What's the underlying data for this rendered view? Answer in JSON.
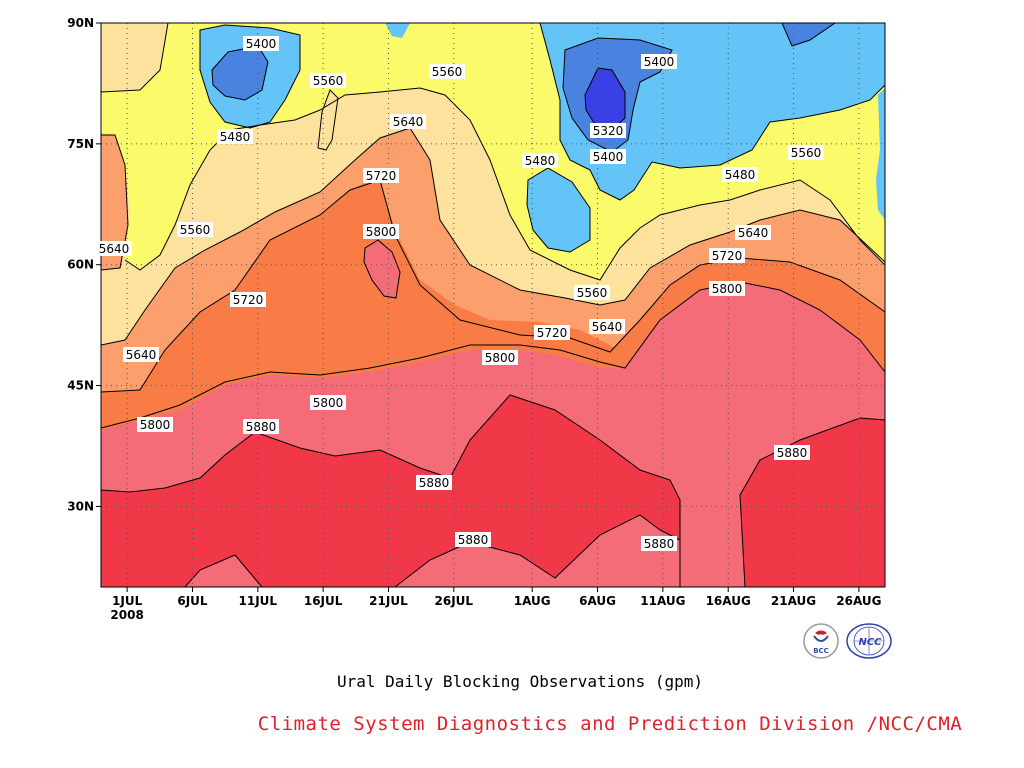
{
  "chart_data": {
    "type": "contour",
    "xlabel": "",
    "ylabel": "",
    "x_ticks": [
      "1JUL",
      "6JUL",
      "11JUL",
      "16JUL",
      "21JUL",
      "26JUL",
      "1AUG",
      "6AUG",
      "11AUG",
      "16AUG",
      "21AUG",
      "26AUG"
    ],
    "x_year_label": "2008",
    "x_range": [
      "2008-06-29",
      "2008-08-28"
    ],
    "y_ticks": [
      "30N",
      "45N",
      "60N",
      "75N",
      "90N"
    ],
    "y_range": [
      20,
      90
    ],
    "contour_levels": [
      5320,
      5400,
      5480,
      5560,
      5640,
      5720,
      5800,
      5880
    ],
    "fill_colors": {
      "below_5320": "#3a3fe6",
      "5320_5400": "#4a82e0",
      "5400_5480": "#64c4f8",
      "5480_5560": "#fafa6a",
      "5560_5640": "#fde29e",
      "5640_5720": "#fba06c",
      "5720_5800": "#f97c46",
      "5800_5880": "#f46c78",
      "above_5880": "#f03848"
    },
    "contour_labels": [
      {
        "text": "5400"
      },
      {
        "text": "5560"
      },
      {
        "text": "5560"
      },
      {
        "text": "5480"
      },
      {
        "text": "5640"
      },
      {
        "text": "5720"
      },
      {
        "text": "5800"
      },
      {
        "text": "5560"
      },
      {
        "text": "5640"
      },
      {
        "text": "5720"
      },
      {
        "text": "5640"
      },
      {
        "text": "5800"
      },
      {
        "text": "5880"
      },
      {
        "text": "5800"
      },
      {
        "text": "5880"
      },
      {
        "text": "5880"
      },
      {
        "text": "5400"
      },
      {
        "text": "5320"
      },
      {
        "text": "5400"
      },
      {
        "text": "5480"
      },
      {
        "text": "5560"
      },
      {
        "text": "5640"
      },
      {
        "text": "5720"
      },
      {
        "text": "5480"
      },
      {
        "text": "5560"
      },
      {
        "text": "5640"
      },
      {
        "text": "5720"
      },
      {
        "text": "5800"
      },
      {
        "text": "5880"
      },
      {
        "text": "5880"
      },
      {
        "text": "5800"
      },
      {
        "text": "5720"
      }
    ],
    "grid": "dotted"
  },
  "captions": {
    "main": "Ural Daily Blocking Observations (gpm)",
    "credit": "Climate System Diagnostics and Prediction Division /NCC/CMA"
  },
  "logos": [
    {
      "text": "BCC"
    },
    {
      "text": "NCC"
    }
  ]
}
